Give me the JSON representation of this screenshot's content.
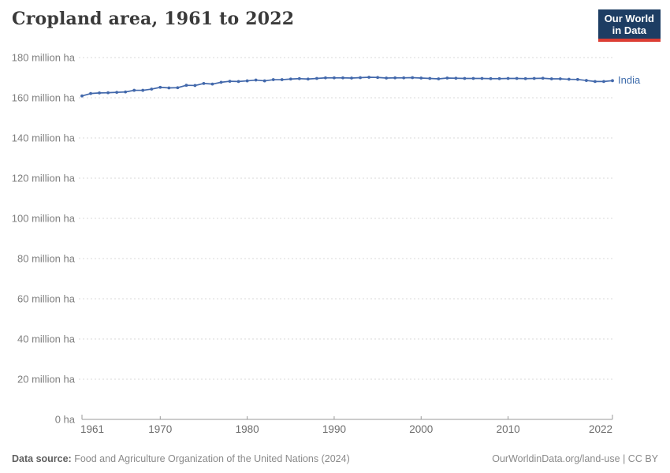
{
  "header": {
    "title": "Cropland area, 1961 to 2022",
    "logo": {
      "line1": "Our World",
      "line2": "in Data"
    }
  },
  "chart_data": {
    "type": "line",
    "title": "Cropland area, 1961 to 2022",
    "unit": "million ha",
    "entity_label": "India",
    "xlim": [
      1961,
      2022
    ],
    "ylim": [
      0,
      180
    ],
    "grid": "horizontal-dashed",
    "legend_position": "end-of-line-label",
    "x": [
      1961,
      1962,
      1963,
      1964,
      1965,
      1966,
      1967,
      1968,
      1969,
      1970,
      1971,
      1972,
      1973,
      1974,
      1975,
      1976,
      1977,
      1978,
      1979,
      1980,
      1981,
      1982,
      1983,
      1984,
      1985,
      1986,
      1987,
      1988,
      1989,
      1990,
      1991,
      1992,
      1993,
      1994,
      1995,
      1996,
      1997,
      1998,
      1999,
      2000,
      2001,
      2002,
      2003,
      2004,
      2005,
      2006,
      2007,
      2008,
      2009,
      2010,
      2011,
      2012,
      2013,
      2014,
      2015,
      2016,
      2017,
      2018,
      2019,
      2020,
      2021,
      2022
    ],
    "series": [
      {
        "name": "India",
        "color": "#4268ab",
        "values": [
          160.9,
          162.1,
          162.4,
          162.5,
          162.7,
          162.9,
          163.7,
          163.7,
          164.3,
          165.2,
          164.9,
          165.0,
          166.2,
          166.1,
          167.1,
          166.8,
          167.7,
          168.2,
          168.1,
          168.4,
          168.8,
          168.4,
          169.0,
          169.0,
          169.3,
          169.5,
          169.3,
          169.6,
          169.9,
          169.9,
          169.9,
          169.8,
          170.0,
          170.2,
          170.1,
          169.8,
          169.9,
          169.9,
          170.0,
          169.8,
          169.6,
          169.4,
          169.8,
          169.7,
          169.6,
          169.6,
          169.6,
          169.5,
          169.5,
          169.6,
          169.6,
          169.5,
          169.6,
          169.7,
          169.4,
          169.4,
          169.2,
          169.1,
          168.6,
          168.1,
          168.1,
          168.5
        ]
      }
    ],
    "yticks": [
      {
        "value": 0,
        "label": "0 ha"
      },
      {
        "value": 20,
        "label": "20 million ha"
      },
      {
        "value": 40,
        "label": "40 million ha"
      },
      {
        "value": 60,
        "label": "60 million ha"
      },
      {
        "value": 80,
        "label": "80 million ha"
      },
      {
        "value": 100,
        "label": "100 million ha"
      },
      {
        "value": 120,
        "label": "120 million ha"
      },
      {
        "value": 140,
        "label": "140 million ha"
      },
      {
        "value": 160,
        "label": "160 million ha"
      },
      {
        "value": 180,
        "label": "180 million ha"
      }
    ],
    "xticks": [
      {
        "value": 1961,
        "label": "1961"
      },
      {
        "value": 1970,
        "label": "1970"
      },
      {
        "value": 1980,
        "label": "1980"
      },
      {
        "value": 1990,
        "label": "1990"
      },
      {
        "value": 2000,
        "label": "2000"
      },
      {
        "value": 2010,
        "label": "2010"
      },
      {
        "value": 2022,
        "label": "2022"
      }
    ]
  },
  "footer": {
    "source_label": "Data source:",
    "source_text": "Food and Agriculture Organization of the United Nations (2024)",
    "link_text": "OurWorldinData.org/land-use",
    "separator": " | ",
    "license": "CC BY"
  },
  "colors": {
    "line": "#4268ab",
    "logo_bg": "#1d3d63",
    "logo_red": "#dc3d33",
    "grid": "#dadada",
    "axis": "#9a9a9a",
    "tick_label": "#7f7f7f",
    "title": "#3a3a3a"
  }
}
